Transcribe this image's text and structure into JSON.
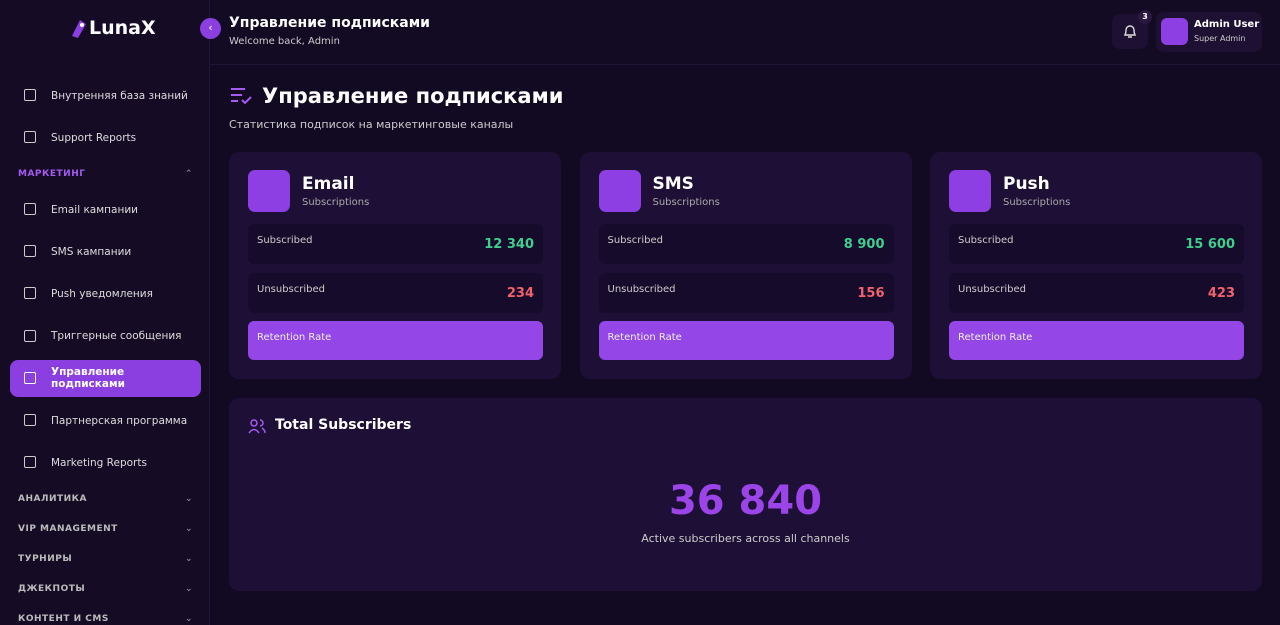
{
  "sidebar": {
    "brand": "LunaX",
    "top_items": [
      "Внутренняя база знаний",
      "Support Reports"
    ],
    "section": "МАРКЕТИНГ",
    "items": [
      "Email кампании",
      "SMS кампании",
      "Push уведомления",
      "Триггерные сообщения",
      "Управление подписками",
      "Партнерская программа",
      "Marketing Reports"
    ],
    "collapsed_sections": [
      "АНАЛИТИКА",
      "VIP MANAGEMENT",
      "ТУРНИРЫ",
      "ДЖЕКПОТЫ",
      "КОНТЕНТ И CMS"
    ]
  },
  "header": {
    "title": "Управление подписками",
    "subtitle": "Welcome back, Admin",
    "notifications": 3,
    "user": {
      "name": "Admin User",
      "role": "Super Admin"
    }
  },
  "page": {
    "title": "Управление подписками",
    "subtitle": "Статистика подписок на маркетинговые каналы"
  },
  "cards": [
    {
      "title": "Email",
      "subtitle": "Subscriptions",
      "rows": [
        {
          "label": "Subscribed",
          "value": "12 340"
        },
        {
          "label": "Unsubscribed",
          "value": "234"
        }
      ],
      "retention": "Retention Rate"
    },
    {
      "title": "SMS",
      "subtitle": "Subscriptions",
      "rows": [
        {
          "label": "Subscribed",
          "value": "8 900"
        },
        {
          "label": "Unsubscribed",
          "value": "156"
        }
      ],
      "retention": "Retention Rate"
    },
    {
      "title": "Push",
      "subtitle": "Subscriptions",
      "rows": [
        {
          "label": "Subscribed",
          "value": "15 600"
        },
        {
          "label": "Unsubscribed",
          "value": "423"
        }
      ],
      "retention": "Retention Rate"
    }
  ],
  "total": {
    "title": "Total Subscribers",
    "value": "36 840",
    "caption": "Active subscribers across all channels"
  }
}
